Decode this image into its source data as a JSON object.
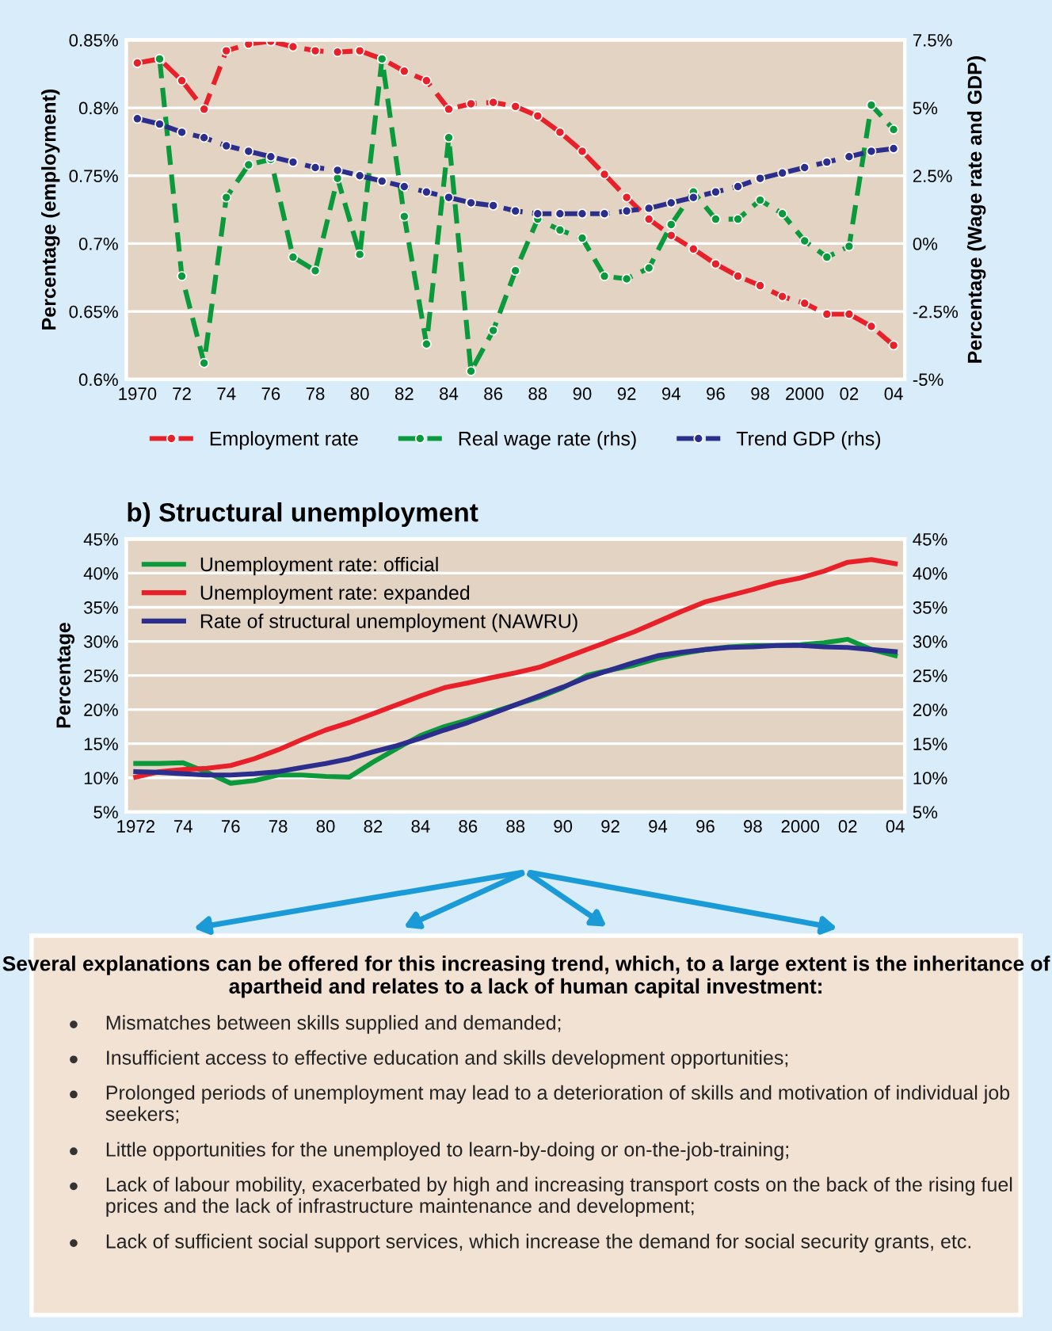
{
  "chart_data": [
    {
      "type": "line",
      "ylabel": "Percentage (employment)",
      "y2label": "Percentage (Wage rate and GDP)",
      "x": [
        1970,
        1971,
        1972,
        1973,
        1974,
        1975,
        1976,
        1977,
        1978,
        1979,
        1980,
        1981,
        1982,
        1983,
        1984,
        1985,
        1986,
        1987,
        1988,
        1989,
        1990,
        1991,
        1992,
        1993,
        1994,
        1995,
        1996,
        1997,
        1998,
        1999,
        2000,
        2001,
        2002,
        2003,
        2004
      ],
      "xlim": [
        1969.5,
        2004.5
      ],
      "xticks": [
        1970,
        {
          "value": 1972,
          "label": "72"
        },
        {
          "value": 1974,
          "label": "74"
        },
        {
          "value": 1976,
          "label": "76"
        },
        {
          "value": 1978,
          "label": "78"
        },
        {
          "value": 1980,
          "label": "80"
        },
        {
          "value": 1982,
          "label": "82"
        },
        {
          "value": 1984,
          "label": "84"
        },
        {
          "value": 1986,
          "label": "86"
        },
        {
          "value": 1988,
          "label": "88"
        },
        {
          "value": 1990,
          "label": "90"
        },
        {
          "value": 1992,
          "label": "92"
        },
        {
          "value": 1994,
          "label": "94"
        },
        {
          "value": 1996,
          "label": "96"
        },
        {
          "value": 1998,
          "label": "98"
        },
        2000,
        {
          "value": 2002,
          "label": "02"
        },
        {
          "value": 2004,
          "label": "04"
        }
      ],
      "ylim": [
        0.6,
        0.85
      ],
      "yticks": [
        {
          "value": 0.6,
          "label": "0.6%"
        },
        {
          "value": 0.65,
          "label": "0.65%"
        },
        {
          "value": 0.7,
          "label": "0.7%"
        },
        {
          "value": 0.75,
          "label": "0.75%"
        },
        {
          "value": 0.8,
          "label": "0.8%"
        },
        {
          "value": 0.85,
          "label": "0.85%"
        }
      ],
      "y2lim": [
        -5,
        7.5
      ],
      "y2ticks": [
        {
          "value": -5,
          "label": "-5%"
        },
        {
          "value": -2.5,
          "label": "-2.5%"
        },
        {
          "value": 0,
          "label": "0%"
        },
        {
          "value": 2.5,
          "label": "2.5%"
        },
        {
          "value": 5,
          "label": "5%"
        },
        {
          "value": 7.5,
          "label": "7.5%"
        }
      ],
      "grid": "y",
      "legend": "bottom",
      "marker": "circle",
      "line_style": "dashed",
      "series": [
        {
          "name": "Employment rate",
          "color": "#e8202a",
          "values": [
            0.833,
            0.836,
            0.82,
            0.799,
            0.842,
            0.847,
            0.849,
            0.845,
            0.842,
            0.841,
            0.842,
            0.836,
            0.827,
            0.82,
            0.799,
            0.803,
            0.804,
            0.801,
            0.794,
            0.782,
            0.768,
            0.751,
            0.734,
            0.718,
            0.706,
            0.696,
            0.685,
            0.676,
            0.669,
            0.661,
            0.656,
            0.648,
            0.648,
            0.639,
            0.625
          ]
        },
        {
          "name": "Real wage rate (rhs)",
          "color": "#0a9a3c",
          "axis": "y2",
          "values": [
            null,
            6.8,
            -1.2,
            -4.4,
            1.7,
            2.9,
            3.1,
            -0.5,
            -1.0,
            2.4,
            -0.4,
            6.8,
            1.0,
            -3.7,
            3.9,
            -4.7,
            -3.2,
            -1.0,
            0.9,
            0.5,
            0.2,
            -1.2,
            -1.3,
            -0.9,
            0.7,
            1.9,
            0.9,
            0.9,
            1.6,
            1.1,
            0.1,
            -0.5,
            -0.1,
            5.1,
            4.2
          ]
        },
        {
          "name": "Trend GDP (rhs)",
          "color": "#2b2e8c",
          "axis": "y2",
          "values": [
            4.6,
            4.4,
            4.1,
            3.9,
            3.6,
            3.4,
            3.2,
            3.0,
            2.8,
            2.7,
            2.5,
            2.3,
            2.1,
            1.9,
            1.7,
            1.5,
            1.4,
            1.2,
            1.1,
            1.1,
            1.1,
            1.1,
            1.2,
            1.3,
            1.5,
            1.7,
            1.9,
            2.1,
            2.4,
            2.6,
            2.8,
            3.0,
            3.2,
            3.4,
            3.5
          ]
        }
      ]
    },
    {
      "type": "line",
      "title": "b) Structural unemployment",
      "ylabel": "Percentage",
      "x": [
        1972,
        1973,
        1974,
        1975,
        1976,
        1977,
        1978,
        1979,
        1980,
        1981,
        1982,
        1983,
        1984,
        1985,
        1986,
        1987,
        1988,
        1989,
        1990,
        1991,
        1992,
        1993,
        1994,
        1995,
        1996,
        1997,
        1998,
        1999,
        2000,
        2001,
        2002,
        2003,
        2004
      ],
      "xlim": [
        1971.6,
        2004.4
      ],
      "xticks": [
        1972,
        {
          "value": 1974,
          "label": "74"
        },
        {
          "value": 1976,
          "label": "76"
        },
        {
          "value": 1978,
          "label": "78"
        },
        {
          "value": 1980,
          "label": "80"
        },
        {
          "value": 1982,
          "label": "82"
        },
        {
          "value": 1984,
          "label": "84"
        },
        {
          "value": 1986,
          "label": "86"
        },
        {
          "value": 1988,
          "label": "88"
        },
        {
          "value": 1990,
          "label": "90"
        },
        {
          "value": 1992,
          "label": "92"
        },
        {
          "value": 1994,
          "label": "94"
        },
        {
          "value": 1996,
          "label": "96"
        },
        {
          "value": 1998,
          "label": "98"
        },
        2000,
        {
          "value": 2002,
          "label": "02"
        },
        {
          "value": 2004,
          "label": "04"
        }
      ],
      "ylim": [
        5,
        45
      ],
      "yticks": [
        {
          "value": 5,
          "label": "5%"
        },
        {
          "value": 10,
          "label": "10%"
        },
        {
          "value": 15,
          "label": "15%"
        },
        {
          "value": 20,
          "label": "20%"
        },
        {
          "value": 25,
          "label": "25%"
        },
        {
          "value": 30,
          "label": "30%"
        },
        {
          "value": 35,
          "label": "35%"
        },
        {
          "value": 40,
          "label": "40%"
        },
        {
          "value": 45,
          "label": "45%"
        }
      ],
      "y2lim": [
        5,
        45
      ],
      "y2ticks": [
        {
          "value": 5,
          "label": "5%"
        },
        {
          "value": 10,
          "label": "10%"
        },
        {
          "value": 15,
          "label": "15%"
        },
        {
          "value": 20,
          "label": "20%"
        },
        {
          "value": 25,
          "label": "25%"
        },
        {
          "value": 30,
          "label": "30%"
        },
        {
          "value": 35,
          "label": "35%"
        },
        {
          "value": 40,
          "label": "40%"
        },
        {
          "value": 45,
          "label": "45%"
        }
      ],
      "grid": "y",
      "legend": "top left",
      "line_style": "solid",
      "series": [
        {
          "name": "Unemployment rate: official",
          "color": "#0a9a3c",
          "values": [
            12.1,
            12.1,
            12.2,
            10.8,
            9.2,
            9.6,
            10.4,
            10.4,
            10.2,
            10.1,
            12.3,
            14.3,
            16.2,
            17.5,
            18.5,
            19.6,
            20.7,
            21.8,
            23.2,
            25.0,
            25.8,
            26.5,
            27.5,
            28.2,
            28.8,
            29.2,
            29.4,
            29.4,
            29.5,
            29.8,
            30.3,
            28.8,
            27.9
          ]
        },
        {
          "name": "Unemployment rate: expanded",
          "color": "#e8202a",
          "values": [
            10.1,
            10.9,
            11.2,
            11.4,
            11.8,
            12.8,
            14.1,
            15.6,
            17.0,
            18.1,
            19.4,
            20.7,
            22.0,
            23.2,
            23.9,
            24.7,
            25.4,
            26.2,
            27.5,
            28.8,
            30.1,
            31.4,
            32.9,
            34.4,
            35.8,
            36.7,
            37.6,
            38.6,
            39.3,
            40.3,
            41.6,
            42.0,
            41.4
          ]
        },
        {
          "name": "Rate of structural unemployment (NAWRU)",
          "color": "#2b2e8c",
          "values": [
            10.9,
            10.8,
            10.6,
            10.4,
            10.4,
            10.6,
            10.9,
            11.5,
            12.1,
            12.8,
            13.8,
            14.7,
            15.8,
            17.0,
            18.1,
            19.4,
            20.7,
            22.0,
            23.3,
            24.7,
            25.8,
            26.9,
            27.9,
            28.4,
            28.8,
            29.1,
            29.2,
            29.4,
            29.4,
            29.2,
            29.1,
            28.8,
            28.5
          ]
        }
      ]
    },
    {
      "type": "other",
      "title": "Several explanations can be offered for this increasing trend, which, to a large extent is the inheritance of apartheid and relates to a lack of human capital investment:",
      "annotations": [
        "Mismatches between skills supplied and demanded;",
        "Insufficient access to effective education and skills development opportunities;",
        "Prolonged periods of unemployment may lead to a deterioration of skills and motivation of individual job seekers;",
        "Little opportunities for the unemployed to learn-by-doing or on-the-job-training;",
        "Lack of labour mobility, exacerbated by high and increasing transport costs on the back of the rising fuel prices and the lack of infrastructure maintenance and development;",
        "Lack of sufficient social support services, which increase the demand for social security grants, etc."
      ]
    }
  ]
}
